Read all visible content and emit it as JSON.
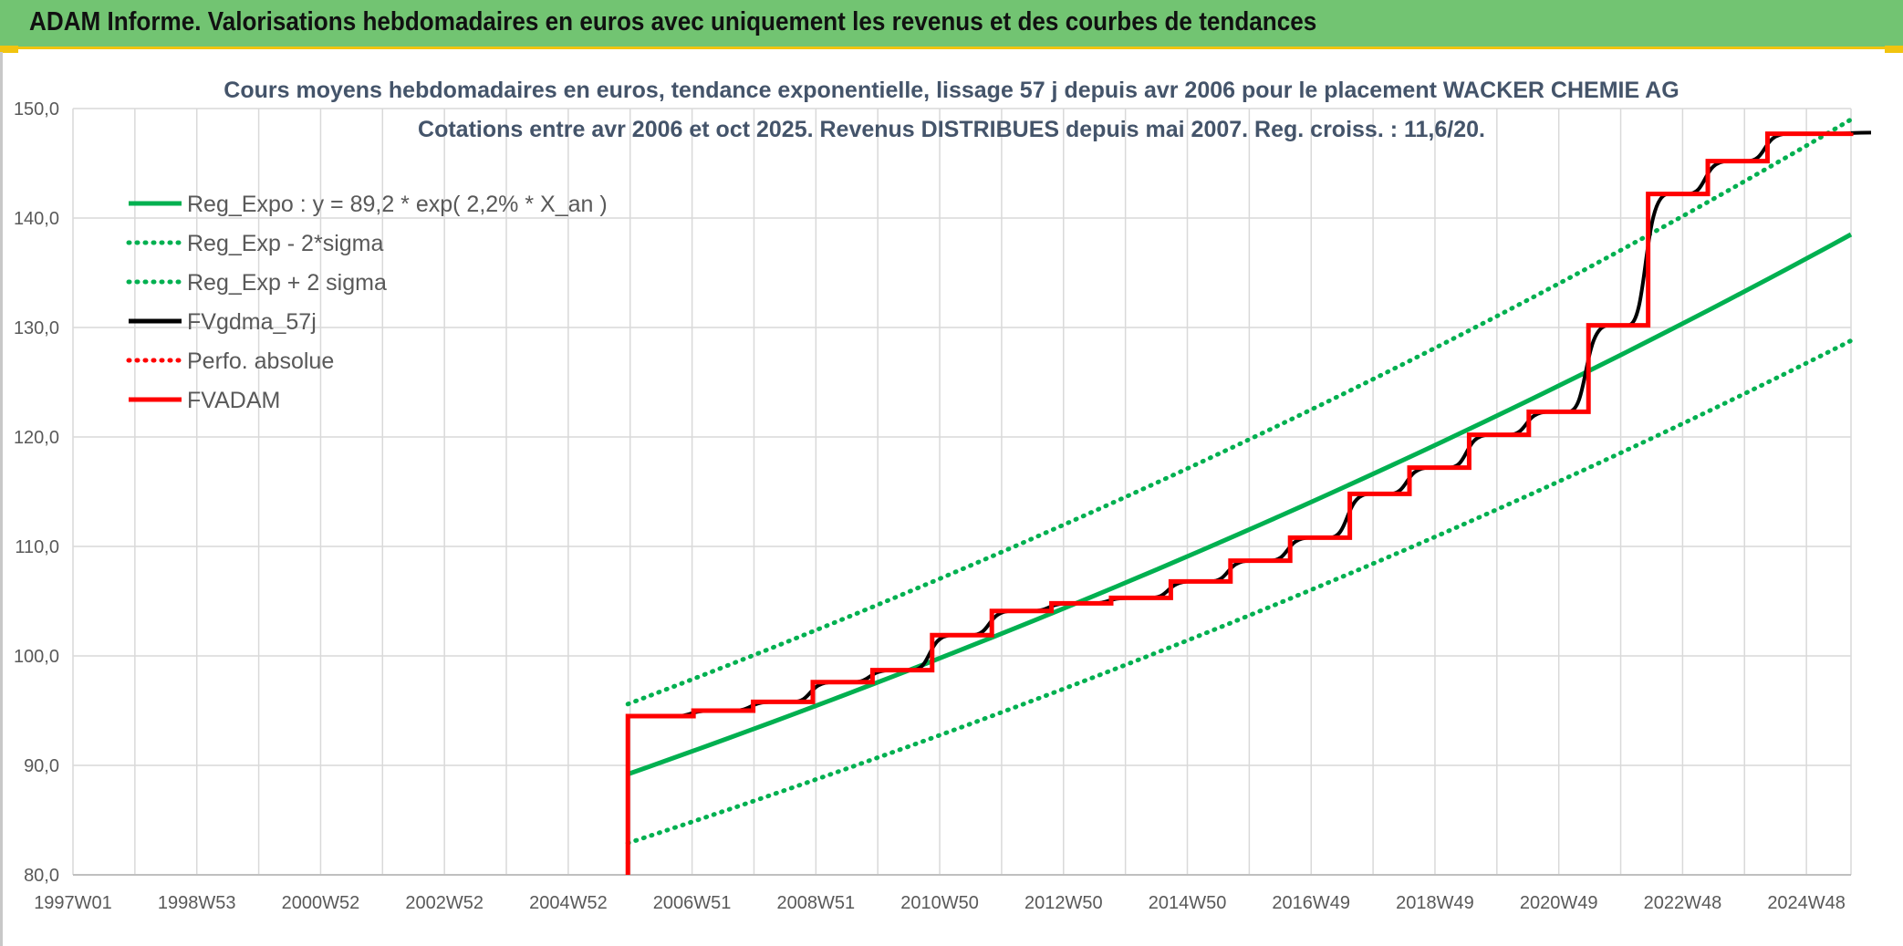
{
  "header": {
    "title": "ADAM Informe. Valorisations hebdomadaires en euros avec uniquement les revenus et des courbes de tendances"
  },
  "chart_data": {
    "type": "line",
    "title": "Cours moyens hebdomadaires en euros, tendance exponentielle, lissage 57 j depuis avr 2006 pour le placement WACKER CHEMIE AG",
    "subtitle": "Cotations entre avr 2006 et oct 2025. Revenus DISTRIBUES depuis mai 2007. Reg. croiss. : 11,6/20.",
    "xlabel": "",
    "ylabel": "",
    "x_tick_labels": [
      "1997W01",
      "1998W53",
      "2000W52",
      "2002W52",
      "2004W52",
      "2006W51",
      "2008W51",
      "2010W50",
      "2012W50",
      "2014W50",
      "2016W49",
      "2018W49",
      "2020W49",
      "2022W48",
      "2024W48"
    ],
    "x_range": [
      1997.0,
      2026.8
    ],
    "ylim": [
      80,
      150
    ],
    "y_ticks": [
      "80,0",
      "90,0",
      "100,0",
      "110,0",
      "120,0",
      "130,0",
      "140,0",
      "150,0"
    ],
    "y_tick_values": [
      80,
      90,
      100,
      110,
      120,
      130,
      140,
      150
    ],
    "grid": true,
    "legend_position": "top-left",
    "series": [
      {
        "name": "Reg_Expo : y = 89,2 * exp( 2,2% *  X_an )",
        "color": "#00b050",
        "style": "solid",
        "x": [
          2006.3,
          2026.8
        ],
        "y": [
          89.2,
          138.5
        ]
      },
      {
        "name": "Reg_Exp - 2*sigma",
        "color": "#00b050",
        "style": "dotted",
        "x": [
          2006.3,
          2026.8
        ],
        "y": [
          82.9,
          128.8
        ]
      },
      {
        "name": "Reg_Exp + 2 sigma",
        "color": "#00b050",
        "style": "dotted",
        "x": [
          2006.3,
          2026.8
        ],
        "y": [
          95.6,
          149.0
        ]
      },
      {
        "name": "FVgdma_57j",
        "color": "#000000",
        "style": "solid",
        "x": [
          2006.3,
          2007.4,
          2008.4,
          2009.4,
          2010.4,
          2011.4,
          2012.4,
          2013.4,
          2014.4,
          2015.4,
          2016.4,
          2017.4,
          2018.4,
          2019.4,
          2020.4,
          2021.4,
          2022.4,
          2023.4,
          2024.4,
          2025.4,
          2026.8
        ],
        "y": [
          94.5,
          95.0,
          95.8,
          97.6,
          98.7,
          101.9,
          104.1,
          104.8,
          105.3,
          106.8,
          108.7,
          110.8,
          114.8,
          117.2,
          120.2,
          122.3,
          130.2,
          142.2,
          145.2,
          147.7,
          147.8
        ]
      },
      {
        "name": "Perfo. absolue",
        "color": "#ff0000",
        "style": "dotted",
        "x": [],
        "y": []
      },
      {
        "name": "FVADAM",
        "color": "#ff0000",
        "style": "solid",
        "x": [
          2006.3,
          2006.3,
          2007.4,
          2008.4,
          2009.4,
          2010.4,
          2011.4,
          2012.4,
          2013.4,
          2014.4,
          2015.4,
          2016.4,
          2017.4,
          2018.4,
          2019.4,
          2020.4,
          2021.4,
          2022.4,
          2023.4,
          2024.4,
          2025.4,
          2026.8
        ],
        "y": [
          80.0,
          94.5,
          95.0,
          95.8,
          97.6,
          98.7,
          101.9,
          104.1,
          104.8,
          105.3,
          106.8,
          108.7,
          110.8,
          114.8,
          117.2,
          120.2,
          122.3,
          130.2,
          142.2,
          145.2,
          147.7,
          147.8
        ]
      }
    ]
  }
}
